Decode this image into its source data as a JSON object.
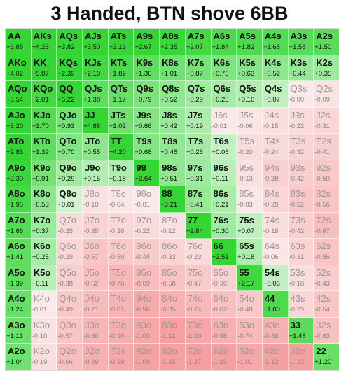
{
  "title": "3 Handed, BTN shove 6BB",
  "colors": {
    "shove_strong": "#33d633",
    "shove_weak": "#dcf5dc",
    "fold_weak": "#fbe9e9",
    "fold_strong": "#f6a1a1"
  },
  "chart_data": {
    "type": "heatmap",
    "title": "3 Handed, BTN shove 6BB",
    "ranks": [
      "A",
      "K",
      "Q",
      "J",
      "T",
      "9",
      "8",
      "7",
      "6",
      "5",
      "4",
      "3",
      "2"
    ],
    "rows": [
      {
        "hands": [
          "AA",
          "AKs",
          "AQs",
          "AJs",
          "ATs",
          "A9s",
          "A8s",
          "A7s",
          "A6s",
          "A5s",
          "A4s",
          "A3s",
          "A2s"
        ],
        "values": [
          6.88,
          4.26,
          3.82,
          3.5,
          3.16,
          2.67,
          2.35,
          2.07,
          1.84,
          1.82,
          1.68,
          1.58,
          1.5
        ]
      },
      {
        "hands": [
          "AKo",
          "KK",
          "KQs",
          "KJs",
          "KTs",
          "K9s",
          "K8s",
          "K7s",
          "K6s",
          "K5s",
          "K4s",
          "K3s",
          "K2s"
        ],
        "values": [
          4.02,
          5.87,
          2.39,
          2.1,
          1.82,
          1.36,
          1.01,
          0.87,
          0.75,
          0.63,
          0.52,
          0.44,
          0.35
        ]
      },
      {
        "hands": [
          "AQo",
          "KQo",
          "QQ",
          "QJs",
          "QTs",
          "Q9s",
          "Q8s",
          "Q7s",
          "Q6s",
          "Q5s",
          "Q4s",
          "Q3s",
          "Q2s"
        ],
        "values": [
          3.54,
          2.01,
          5.22,
          1.38,
          1.17,
          0.79,
          0.52,
          0.29,
          0.25,
          0.16,
          0.07,
          -0.0,
          -0.09
        ]
      },
      {
        "hands": [
          "AJo",
          "KJo",
          "QJo",
          "JJ",
          "JTs",
          "J9s",
          "J8s",
          "J7s",
          "J6s",
          "J5s",
          "J4s",
          "J3s",
          "J2s"
        ],
        "values": [
          3.2,
          1.7,
          0.93,
          4.68,
          1.02,
          0.66,
          0.42,
          0.19,
          -0.01,
          -0.06,
          -0.15,
          -0.22,
          -0.31
        ]
      },
      {
        "hands": [
          "ATo",
          "KTo",
          "QTo",
          "JTo",
          "TT",
          "T9s",
          "T8s",
          "T7s",
          "T6s",
          "T5s",
          "T4s",
          "T3s",
          "T2s"
        ],
        "values": [
          2.83,
          1.39,
          0.7,
          0.55,
          4.2,
          0.68,
          0.48,
          0.26,
          0.05,
          -0.2,
          -0.24,
          -0.32,
          -0.41
        ]
      },
      {
        "hands": [
          "A9o",
          "K9o",
          "Q9o",
          "J9o",
          "T9o",
          "99",
          "98s",
          "97s",
          "96s",
          "95s",
          "94s",
          "93s",
          "92s"
        ],
        "values": [
          2.3,
          0.91,
          0.29,
          0.15,
          0.18,
          3.64,
          0.51,
          0.31,
          0.11,
          -0.13,
          -0.38,
          -0.42,
          -0.5
        ]
      },
      {
        "hands": [
          "A8o",
          "K8o",
          "Q8o",
          "J8o",
          "T8o",
          "98o",
          "88",
          "87s",
          "86s",
          "85s",
          "84s",
          "83s",
          "82s"
        ],
        "values": [
          1.95,
          0.53,
          0.01,
          -0.1,
          -0.04,
          -0.01,
          3.21,
          0.41,
          0.21,
          -0.03,
          -0.28,
          -0.52,
          -0.56
        ]
      },
      {
        "hands": [
          "A7o",
          "K7o",
          "Q7o",
          "J7o",
          "T7o",
          "97o",
          "87o",
          "77",
          "76s",
          "75s",
          "74s",
          "73s",
          "72s"
        ],
        "values": [
          1.66,
          0.37,
          -0.25,
          -0.35,
          -0.28,
          -0.22,
          -0.12,
          2.84,
          0.3,
          0.07,
          -0.18,
          -0.42,
          -0.67
        ]
      },
      {
        "hands": [
          "A6o",
          "K6o",
          "Q6o",
          "J6o",
          "T6o",
          "96o",
          "86o",
          "76o",
          "66",
          "65s",
          "64s",
          "63s",
          "62s"
        ],
        "values": [
          1.41,
          0.25,
          -0.29,
          -0.57,
          -0.5,
          -0.44,
          -0.33,
          -0.23,
          2.51,
          0.18,
          -0.06,
          -0.31,
          -0.56
        ]
      },
      {
        "hands": [
          "A5o",
          "K5o",
          "Q5o",
          "J5o",
          "T5o",
          "95o",
          "85o",
          "75o",
          "65o",
          "55",
          "54s",
          "53s",
          "52s"
        ],
        "values": [
          1.39,
          0.11,
          -0.38,
          -0.62,
          -0.76,
          -0.69,
          -0.58,
          -0.47,
          -0.36,
          2.17,
          0.06,
          -0.18,
          -0.43
        ]
      },
      {
        "hands": [
          "A4o",
          "K4o",
          "Q4o",
          "J4o",
          "T4o",
          "94o",
          "84o",
          "74o",
          "64o",
          "54o",
          "44",
          "43s",
          "42s"
        ],
        "values": [
          1.24,
          -0.01,
          -0.49,
          -0.71,
          -0.81,
          -0.96,
          -0.85,
          -0.74,
          -0.62,
          -0.49,
          1.8,
          -0.29,
          -0.54
        ]
      },
      {
        "hands": [
          "A3o",
          "K3o",
          "Q3o",
          "J3o",
          "T3o",
          "93o",
          "83o",
          "73o",
          "63o",
          "53o",
          "43o",
          "33",
          "32s"
        ],
        "values": [
          1.13,
          -0.1,
          -0.57,
          -0.8,
          -0.9,
          -1.0,
          -1.11,
          -1.0,
          -0.88,
          -0.74,
          -0.86,
          1.48,
          -0.63
        ]
      },
      {
        "hands": [
          "A2o",
          "K2o",
          "Q2o",
          "J2o",
          "T2o",
          "92o",
          "82o",
          "72o",
          "62o",
          "52o",
          "42o",
          "32o",
          "22"
        ],
        "values": [
          1.04,
          -0.19,
          -0.66,
          -0.89,
          -0.99,
          -1.09,
          -1.15,
          -1.27,
          -1.15,
          -1.01,
          -1.12,
          -1.23,
          1.2
        ]
      }
    ]
  }
}
